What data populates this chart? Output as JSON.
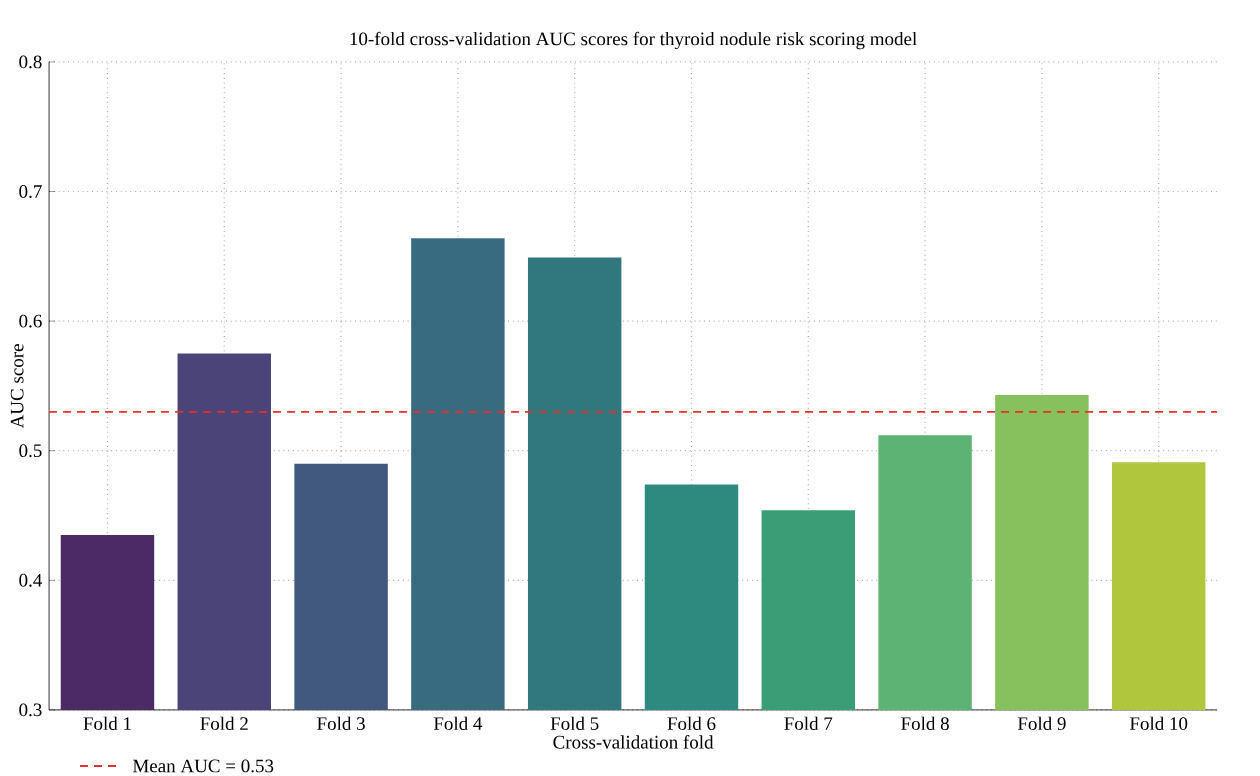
{
  "chart_data": {
    "type": "bar",
    "title": "10-fold cross-validation AUC scores for thyroid nodule risk scoring model",
    "xlabel": "Cross-validation fold",
    "ylabel": "AUC score",
    "categories": [
      "Fold 1",
      "Fold 2",
      "Fold 3",
      "Fold 4",
      "Fold 5",
      "Fold 6",
      "Fold 7",
      "Fold 8",
      "Fold 9",
      "Fold 10"
    ],
    "values": [
      0.435,
      0.575,
      0.49,
      0.664,
      0.649,
      0.474,
      0.454,
      0.512,
      0.543,
      0.491
    ],
    "colors": [
      "#4b2a66",
      "#4a4478",
      "#42597f",
      "#386b80",
      "#30787e",
      "#2e8a7e",
      "#3a9d76",
      "#5db373",
      "#86c15e",
      "#b0c63c"
    ],
    "ylim": [
      0.3,
      0.8
    ],
    "yticks": [
      0.3,
      0.4,
      0.5,
      0.6,
      0.7,
      0.8
    ],
    "ref_lines": [
      {
        "axis": "y",
        "value": 0.53,
        "label": "Mean AUC = 0.53",
        "color": "#e8302a",
        "line_style": "dashed"
      }
    ],
    "grid": true,
    "legend": "bottom left"
  }
}
